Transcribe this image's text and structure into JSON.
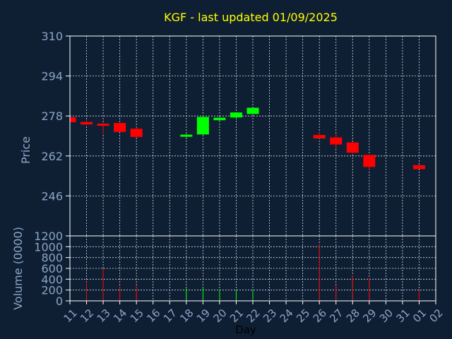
{
  "chart_data": {
    "type": "candlestick",
    "title": "KGF - last updated 01/09/2025",
    "xlabel": "Day",
    "x_ticks": [
      "11",
      "12",
      "13",
      "14",
      "15",
      "16",
      "17",
      "18",
      "19",
      "20",
      "21",
      "22",
      "23",
      "24",
      "25",
      "26",
      "27",
      "28",
      "29",
      "30",
      "31",
      "01",
      "02"
    ],
    "price_panel": {
      "ylabel": "Price",
      "ylim": [
        230,
        310
      ],
      "y_ticks": [
        310,
        294,
        278,
        262,
        246
      ],
      "candles": [
        {
          "day": "11",
          "open": 277.5,
          "high": 277.5,
          "low": 275.5,
          "close": 275.5
        },
        {
          "day": "12",
          "open": 275.6,
          "high": 276.4,
          "low": 274.4,
          "close": 274.6
        },
        {
          "day": "13",
          "open": 274.8,
          "high": 275.2,
          "low": 270.9,
          "close": 274.2
        },
        {
          "day": "14",
          "open": 275.2,
          "high": 275.2,
          "low": 271.6,
          "close": 271.6
        },
        {
          "day": "15",
          "open": 272.9,
          "high": 273.4,
          "low": 269.3,
          "close": 269.6
        },
        {
          "day": "18",
          "open": 269.7,
          "high": 270.8,
          "low": 269.4,
          "close": 270.5
        },
        {
          "day": "19",
          "open": 270.6,
          "high": 278.3,
          "low": 270.6,
          "close": 277.6
        },
        {
          "day": "20",
          "open": 276.3,
          "high": 277.7,
          "low": 276.1,
          "close": 277.3
        },
        {
          "day": "21",
          "open": 277.4,
          "high": 279.5,
          "low": 276.5,
          "close": 279.4
        },
        {
          "day": "22",
          "open": 278.8,
          "high": 281.4,
          "low": 278.5,
          "close": 281.3
        },
        {
          "day": "26",
          "open": 270.4,
          "high": 271.6,
          "low": 269.2,
          "close": 269.0
        },
        {
          "day": "27",
          "open": 269.4,
          "high": 270.7,
          "low": 264.9,
          "close": 266.6
        },
        {
          "day": "28",
          "open": 267.4,
          "high": 267.4,
          "low": 263.0,
          "close": 263.3
        },
        {
          "day": "29",
          "open": 262.4,
          "high": 262.4,
          "low": 256.4,
          "close": 257.6
        },
        {
          "day": "01",
          "open": 258.3,
          "high": 258.4,
          "low": 256.8,
          "close": 256.7
        }
      ]
    },
    "volume_panel": {
      "ylabel": "Volume (0000)",
      "ylim": [
        0,
        1200
      ],
      "y_ticks": [
        1200,
        1000,
        800,
        600,
        400,
        200,
        0
      ],
      "bars": [
        {
          "day": "12",
          "value": 350,
          "direction": "down"
        },
        {
          "day": "13",
          "value": 600,
          "direction": "down"
        },
        {
          "day": "14",
          "value": 270,
          "direction": "down"
        },
        {
          "day": "15",
          "value": 280,
          "direction": "down"
        },
        {
          "day": "18",
          "value": 230,
          "direction": "up"
        },
        {
          "day": "19",
          "value": 260,
          "direction": "up"
        },
        {
          "day": "20",
          "value": 210,
          "direction": "up"
        },
        {
          "day": "21",
          "value": 200,
          "direction": "up"
        },
        {
          "day": "22",
          "value": 200,
          "direction": "up"
        },
        {
          "day": "26",
          "value": 1050,
          "direction": "down"
        },
        {
          "day": "27",
          "value": 290,
          "direction": "down"
        },
        {
          "day": "28",
          "value": 470,
          "direction": "down"
        },
        {
          "day": "29",
          "value": 420,
          "direction": "down"
        },
        {
          "day": "01",
          "value": 200,
          "direction": "down"
        }
      ]
    },
    "grid": true,
    "colors": {
      "background": "#0f1f33",
      "title": "#ffff00",
      "axis_text": "#8aa5c7",
      "frame": "#ffffff",
      "up": "#00ff00",
      "down": "#ff0000"
    }
  }
}
